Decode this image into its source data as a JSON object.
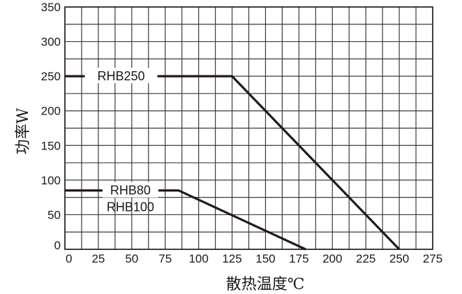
{
  "chart_data": {
    "type": "line",
    "xlabel": "散热温度℃",
    "ylabel": "功率W",
    "xlim": [
      0,
      275
    ],
    "ylim": [
      0,
      350
    ],
    "x_ticks": [
      "0",
      "25",
      "50",
      "75",
      "100",
      "125",
      "150",
      "175",
      "200",
      "225",
      "250",
      "275"
    ],
    "y_ticks": [
      "0",
      "50",
      "100",
      "150",
      "200",
      "250",
      "300",
      "350"
    ],
    "grid": true,
    "line_color": "#231815",
    "series": [
      {
        "name": "RHB250",
        "x": [
          0,
          125,
          250
        ],
        "y": [
          250,
          250,
          0
        ]
      },
      {
        "name": "RHB80",
        "name2": "RHB100",
        "x": [
          0,
          85,
          180
        ],
        "y": [
          85,
          85,
          0
        ]
      }
    ]
  }
}
